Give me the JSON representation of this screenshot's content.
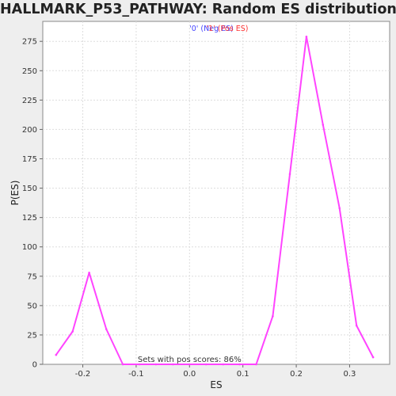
{
  "chart_data": {
    "type": "line",
    "title": "HALLMARK_P53_PATHWAY: Random ES distribution",
    "xlabel": "ES",
    "ylabel": "P(ES)",
    "xlim": [
      -0.275,
      0.375
    ],
    "ylim": [
      0,
      292
    ],
    "x_ticks": [
      -0.2,
      -0.1,
      0.0,
      0.1,
      0.2,
      0.3
    ],
    "x_tick_labels": [
      "-0.2",
      "-0.1",
      "0.0",
      "0.1",
      "0.2",
      "0.3"
    ],
    "y_ticks": [
      0,
      25,
      50,
      75,
      100,
      125,
      150,
      175,
      200,
      225,
      250,
      275
    ],
    "y_tick_labels": [
      "0",
      "25",
      "50",
      "75",
      "100",
      "125",
      "150",
      "175",
      "200",
      "225",
      "250",
      "275"
    ],
    "grid": true,
    "line_color": "#ff44ff",
    "series": [
      {
        "x": [
          -0.25,
          -0.219,
          -0.188,
          -0.156,
          -0.125,
          -0.094,
          -0.063,
          -0.031,
          0.0,
          0.031,
          0.063,
          0.094,
          0.125,
          0.156,
          0.188,
          0.219,
          0.25,
          0.281,
          0.313,
          0.344
        ],
        "values": [
          8,
          28,
          78,
          30,
          0,
          0,
          0,
          0,
          0,
          0,
          0,
          0,
          0,
          41,
          162,
          279,
          204,
          133,
          33,
          6
        ]
      }
    ],
    "legend": {
      "placement": "top-center",
      "entries": [
        {
          "label": "'0' (Neg ES)",
          "color": "#4444ff"
        },
        {
          "label": "'1' (Pos ES)",
          "color": "#ff3333"
        }
      ]
    },
    "annotation": "Sets with pos scores: 86%"
  }
}
